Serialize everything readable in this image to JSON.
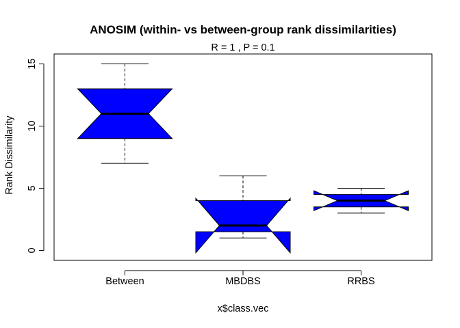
{
  "chart_data": {
    "type": "boxplot",
    "title": "ANOSIM (within- vs between-group rank dissimilarities)",
    "subtitle": "R =  1 ,  P =  0.1",
    "xlabel": "x$class.vec",
    "ylabel": "Rank Dissimilarity",
    "ylim": [
      -0.8,
      15.8
    ],
    "yticks": [
      0,
      5,
      10,
      15
    ],
    "notched": true,
    "box_color": "#0000FF",
    "categories": [
      "Between",
      "MBDBS",
      "RRBS"
    ],
    "boxes": [
      {
        "name": "Between",
        "min": 7,
        "q1": 9,
        "median": 11,
        "q3": 13,
        "max": 15,
        "notch_low": 9,
        "notch_high": 13
      },
      {
        "name": "MBDBS",
        "min": 1,
        "q1": 1.5,
        "median": 2,
        "q3": 4,
        "max": 6,
        "notch_low": -0.2,
        "notch_high": 4.2
      },
      {
        "name": "RRBS",
        "min": 3,
        "q1": 3.5,
        "median": 4,
        "q3": 4.5,
        "max": 5,
        "notch_low": 3.2,
        "notch_high": 4.8
      }
    ]
  }
}
